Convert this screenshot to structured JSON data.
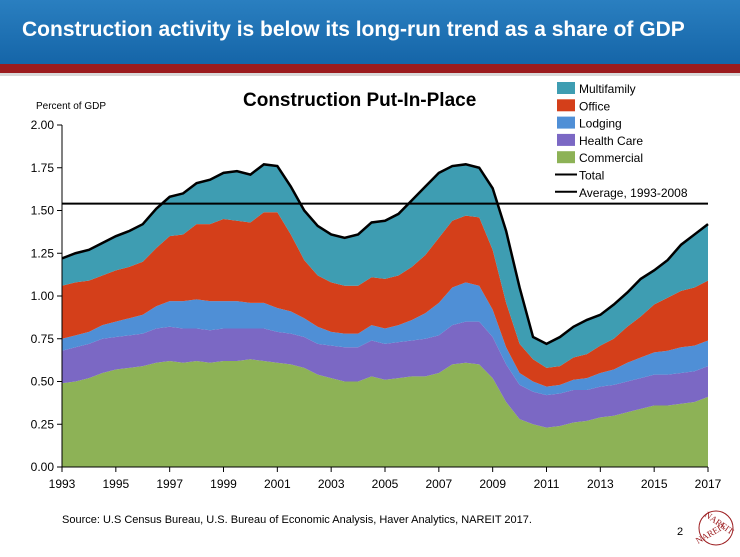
{
  "slide": {
    "title": "Construction activity is below its long-run trend as a share of GDP",
    "source": "Source: U.S Census Bureau, U.S. Bureau of Economic Analysis, Haver Analytics, NAREIT 2017.",
    "page_number": "2",
    "logo_text": "NAREIT",
    "colors": {
      "banner": "#1f73b7",
      "stripe": "#9b1b1e"
    }
  },
  "chart_data": {
    "type": "area",
    "title": "Construction Put-In-Place",
    "ylabel": "Percent of GDP",
    "xlabel": "",
    "xlim": [
      1993,
      2017
    ],
    "ylim": [
      0,
      2
    ],
    "y_ticks": [
      "0.00",
      "0.25",
      "0.50",
      "0.75",
      "1.00",
      "1.25",
      "1.50",
      "1.75",
      "2.00"
    ],
    "x_ticks": [
      "1993",
      "1995",
      "1997",
      "1999",
      "2001",
      "2003",
      "2005",
      "2007",
      "2009",
      "2011",
      "2013",
      "2015",
      "2017"
    ],
    "stacked": true,
    "legend_position": "top-right",
    "x": [
      1993,
      1993.5,
      1994,
      1994.5,
      1995,
      1995.5,
      1996,
      1996.5,
      1997,
      1997.5,
      1998,
      1998.5,
      1999,
      1999.5,
      2000,
      2000.5,
      2001,
      2001.5,
      2002,
      2002.5,
      2003,
      2003.5,
      2004,
      2004.5,
      2005,
      2005.5,
      2006,
      2006.5,
      2007,
      2007.5,
      2008,
      2008.5,
      2009,
      2009.5,
      2010,
      2010.5,
      2011,
      2011.5,
      2012,
      2012.5,
      2013,
      2013.5,
      2014,
      2014.5,
      2015,
      2015.5,
      2016,
      2016.5,
      2017
    ],
    "series": [
      {
        "name": "Commercial",
        "color": "#8db256",
        "values": [
          0.49,
          0.5,
          0.52,
          0.55,
          0.57,
          0.58,
          0.59,
          0.61,
          0.62,
          0.61,
          0.62,
          0.61,
          0.62,
          0.62,
          0.63,
          0.62,
          0.61,
          0.6,
          0.58,
          0.54,
          0.52,
          0.5,
          0.5,
          0.53,
          0.51,
          0.52,
          0.53,
          0.53,
          0.55,
          0.6,
          0.61,
          0.6,
          0.52,
          0.38,
          0.28,
          0.25,
          0.23,
          0.24,
          0.26,
          0.27,
          0.29,
          0.3,
          0.32,
          0.34,
          0.36,
          0.36,
          0.37,
          0.38,
          0.41
        ]
      },
      {
        "name": "Health Care",
        "color": "#7b68c4",
        "values": [
          0.19,
          0.2,
          0.2,
          0.2,
          0.19,
          0.19,
          0.19,
          0.2,
          0.2,
          0.2,
          0.19,
          0.19,
          0.19,
          0.19,
          0.18,
          0.19,
          0.18,
          0.18,
          0.18,
          0.18,
          0.19,
          0.2,
          0.2,
          0.21,
          0.21,
          0.21,
          0.21,
          0.22,
          0.22,
          0.23,
          0.24,
          0.25,
          0.24,
          0.22,
          0.2,
          0.19,
          0.19,
          0.19,
          0.19,
          0.18,
          0.18,
          0.18,
          0.18,
          0.18,
          0.18,
          0.18,
          0.18,
          0.18,
          0.18
        ]
      },
      {
        "name": "Lodging",
        "color": "#4f8fd6",
        "values": [
          0.07,
          0.07,
          0.07,
          0.08,
          0.09,
          0.1,
          0.11,
          0.13,
          0.15,
          0.16,
          0.17,
          0.17,
          0.16,
          0.16,
          0.15,
          0.15,
          0.14,
          0.13,
          0.11,
          0.1,
          0.08,
          0.08,
          0.08,
          0.09,
          0.09,
          0.1,
          0.12,
          0.15,
          0.19,
          0.22,
          0.23,
          0.21,
          0.16,
          0.1,
          0.07,
          0.06,
          0.05,
          0.05,
          0.06,
          0.07,
          0.08,
          0.09,
          0.11,
          0.12,
          0.13,
          0.14,
          0.15,
          0.15,
          0.15
        ]
      },
      {
        "name": "Office",
        "color": "#d43f1a",
        "values": [
          0.31,
          0.31,
          0.3,
          0.29,
          0.3,
          0.3,
          0.31,
          0.34,
          0.38,
          0.39,
          0.44,
          0.45,
          0.48,
          0.47,
          0.47,
          0.53,
          0.56,
          0.45,
          0.34,
          0.3,
          0.29,
          0.28,
          0.28,
          0.28,
          0.29,
          0.29,
          0.31,
          0.34,
          0.38,
          0.39,
          0.39,
          0.4,
          0.35,
          0.26,
          0.17,
          0.13,
          0.11,
          0.11,
          0.13,
          0.14,
          0.16,
          0.18,
          0.21,
          0.24,
          0.28,
          0.31,
          0.33,
          0.34,
          0.35
        ]
      },
      {
        "name": "Multifamily",
        "color": "#3e9db2",
        "values": [
          0.16,
          0.17,
          0.18,
          0.19,
          0.2,
          0.21,
          0.22,
          0.23,
          0.23,
          0.24,
          0.24,
          0.26,
          0.27,
          0.29,
          0.28,
          0.28,
          0.27,
          0.28,
          0.29,
          0.29,
          0.28,
          0.28,
          0.3,
          0.32,
          0.34,
          0.36,
          0.39,
          0.4,
          0.38,
          0.32,
          0.3,
          0.29,
          0.36,
          0.42,
          0.33,
          0.13,
          0.14,
          0.17,
          0.18,
          0.2,
          0.18,
          0.2,
          0.2,
          0.22,
          0.2,
          0.22,
          0.27,
          0.31,
          0.33
        ]
      }
    ],
    "total": {
      "name": "Total",
      "color": "#000000",
      "values": [
        1.22,
        1.25,
        1.27,
        1.31,
        1.35,
        1.38,
        1.42,
        1.51,
        1.58,
        1.6,
        1.66,
        1.68,
        1.72,
        1.73,
        1.71,
        1.77,
        1.76,
        1.64,
        1.5,
        1.41,
        1.36,
        1.34,
        1.36,
        1.43,
        1.44,
        1.48,
        1.56,
        1.64,
        1.72,
        1.76,
        1.77,
        1.75,
        1.63,
        1.38,
        1.05,
        0.76,
        0.72,
        0.76,
        0.82,
        0.86,
        0.89,
        0.95,
        1.02,
        1.1,
        1.15,
        1.21,
        1.3,
        1.36,
        1.42
      ]
    },
    "average": {
      "name": "Average, 1993-2008",
      "color": "#000000",
      "value": 1.54,
      "x_range": [
        1993,
        2017
      ]
    },
    "legend": [
      "Multifamily",
      "Office",
      "Lodging",
      "Health Care",
      "Commercial",
      "Total",
      "Average, 1993-2008"
    ]
  }
}
